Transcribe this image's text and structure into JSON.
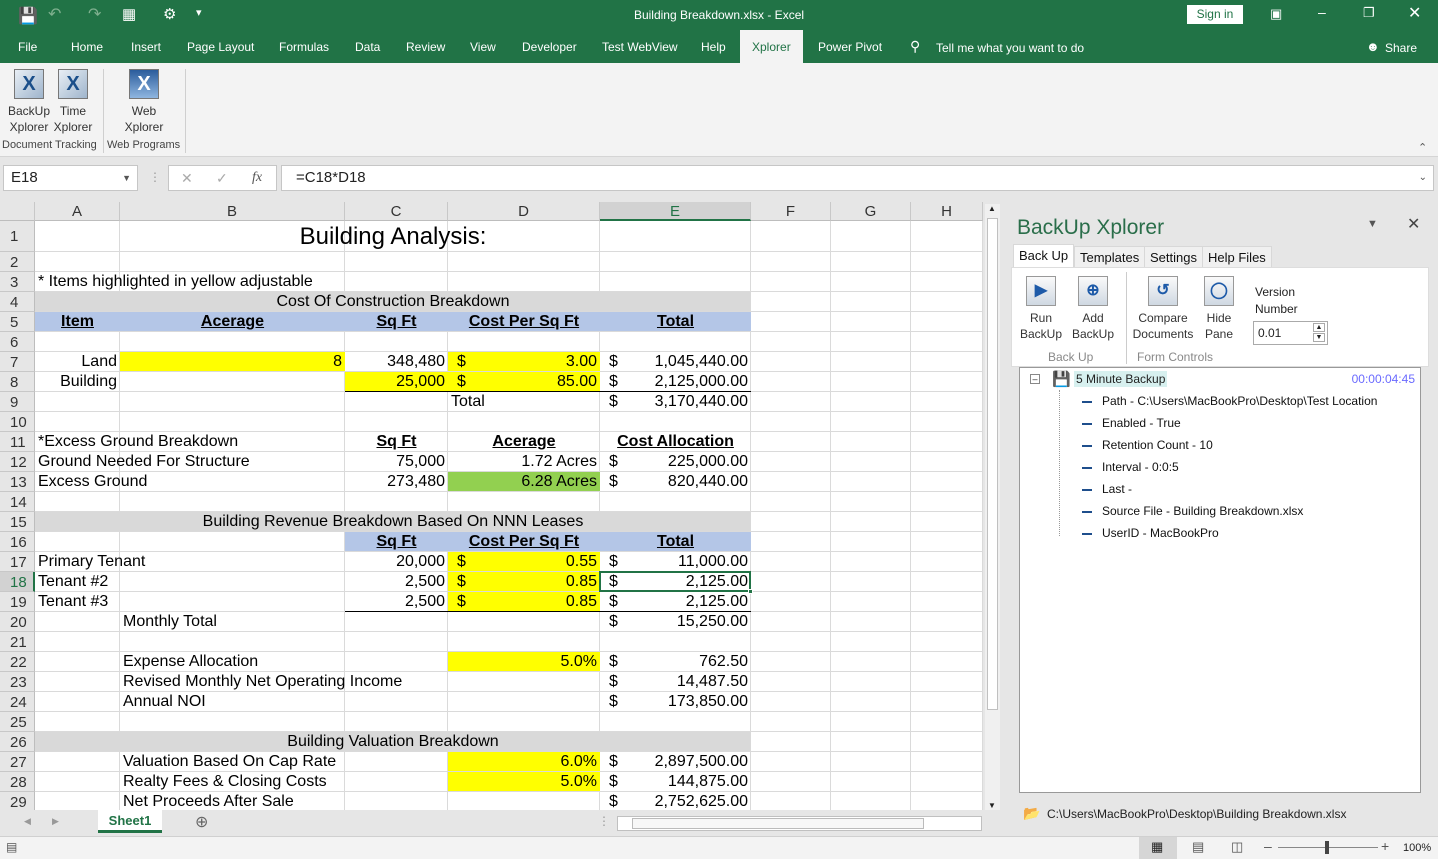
{
  "window": {
    "title": "Building Breakdown.xlsx  -  Excel",
    "sign_in": "Sign in",
    "share": "Share"
  },
  "colors": {
    "excel_green": "#217346",
    "yellow_input": "#ffff00",
    "green_highlight": "#92d050",
    "section_gray": "#d9d9d9",
    "header_blue": "#b4c6e7"
  },
  "menu": {
    "tabs": [
      "File",
      "Home",
      "Insert",
      "Page Layout",
      "Formulas",
      "Data",
      "Review",
      "View",
      "Developer",
      "Test WebView",
      "Help",
      "Xplorer",
      "Power Pivot"
    ],
    "active": "Xplorer",
    "tell_me": "Tell me what you want to do"
  },
  "ribbon": {
    "buttons": [
      {
        "label1": "BackUp",
        "label2": "Xplorer",
        "icon": "backup-xplorer-icon"
      },
      {
        "label1": "Time",
        "label2": "Xplorer",
        "icon": "time-xplorer-icon"
      },
      {
        "label1": "Web",
        "label2": "Xplorer",
        "icon": "web-xplorer-icon"
      }
    ],
    "groups": [
      "Document Tracking",
      "Web Programs"
    ]
  },
  "formula_bar": {
    "name_box": "E18",
    "formula": "=C18*D18",
    "fx": "fx"
  },
  "columns": [
    "A",
    "B",
    "C",
    "D",
    "E",
    "F",
    "G",
    "H"
  ],
  "selected_cell": {
    "col": "E",
    "row": 18
  },
  "rows": [
    {
      "n": 1,
      "cells": [
        {
          "c": "A",
          "span": "E",
          "t": "Building Analysis:",
          "a": "c",
          "title": true
        }
      ]
    },
    {
      "n": 2,
      "cells": []
    },
    {
      "n": 3,
      "cells": [
        {
          "c": "A",
          "t": "* Items highlighted in yellow adjustable"
        }
      ]
    },
    {
      "n": 4,
      "cells": [
        {
          "c": "A",
          "span": "E",
          "t": "Cost Of Construction Breakdown",
          "a": "c",
          "bg": "gray"
        }
      ]
    },
    {
      "n": 5,
      "band": "blue",
      "bandFrom": "A",
      "cells": [
        {
          "c": "A",
          "t": "Item",
          "a": "c",
          "s": "bu"
        },
        {
          "c": "B",
          "t": "Acerage",
          "a": "c",
          "s": "bu"
        },
        {
          "c": "C",
          "t": "Sq Ft",
          "a": "c",
          "s": "bu"
        },
        {
          "c": "D",
          "t": "Cost Per Sq Ft",
          "a": "c",
          "s": "bu"
        },
        {
          "c": "E",
          "t": "Total",
          "a": "c",
          "s": "bu"
        }
      ]
    },
    {
      "n": 6,
      "cells": []
    },
    {
      "n": 7,
      "cells": [
        {
          "c": "A",
          "t": "Land",
          "a": "r"
        },
        {
          "c": "B",
          "t": "8",
          "a": "r",
          "bg": "y"
        },
        {
          "c": "C",
          "t": "348,480",
          "a": "r"
        },
        {
          "c": "D",
          "cur": "$",
          "t": "3.00",
          "a": "r",
          "bg": "y"
        },
        {
          "c": "E",
          "cur": "$",
          "t": "1,045,440.00",
          "a": "r"
        }
      ]
    },
    {
      "n": 8,
      "cells": [
        {
          "c": "A",
          "t": "Building",
          "a": "r"
        },
        {
          "c": "C",
          "t": "25,000",
          "a": "r",
          "bg": "y",
          "bb": true
        },
        {
          "c": "D",
          "cur": "$",
          "t": "85.00",
          "a": "r",
          "bg": "y",
          "bb": true
        },
        {
          "c": "E",
          "cur": "$",
          "t": "2,125,000.00",
          "a": "r",
          "bb": true
        }
      ]
    },
    {
      "n": 9,
      "cells": [
        {
          "c": "D",
          "t": "Total"
        },
        {
          "c": "E",
          "cur": "$",
          "t": "3,170,440.00",
          "a": "r"
        }
      ]
    },
    {
      "n": 10,
      "cells": []
    },
    {
      "n": 11,
      "cells": [
        {
          "c": "A",
          "t": "*Excess Ground Breakdown"
        },
        {
          "c": "C",
          "t": "Sq Ft",
          "a": "c",
          "s": "bu"
        },
        {
          "c": "D",
          "t": "Acerage",
          "a": "c",
          "s": "bu"
        },
        {
          "c": "E",
          "t": "Cost Allocation",
          "a": "c",
          "s": "bu"
        }
      ]
    },
    {
      "n": 12,
      "cells": [
        {
          "c": "A",
          "t": "Ground Needed For Structure"
        },
        {
          "c": "C",
          "t": "75,000",
          "a": "r"
        },
        {
          "c": "D",
          "t": "1.72 Acres",
          "a": "r"
        },
        {
          "c": "E",
          "cur": "$",
          "t": "225,000.00",
          "a": "r"
        }
      ]
    },
    {
      "n": 13,
      "cells": [
        {
          "c": "A",
          "t": "Excess Ground"
        },
        {
          "c": "C",
          "t": "273,480",
          "a": "r"
        },
        {
          "c": "D",
          "t": "6.28 Acres",
          "a": "r",
          "bg": "g"
        },
        {
          "c": "E",
          "cur": "$",
          "t": "820,440.00",
          "a": "r"
        }
      ]
    },
    {
      "n": 14,
      "cells": []
    },
    {
      "n": 15,
      "cells": [
        {
          "c": "A",
          "span": "E",
          "t": "Building Revenue Breakdown Based On NNN Leases",
          "a": "c",
          "bg": "gray"
        }
      ]
    },
    {
      "n": 16,
      "band": "blue",
      "bandFrom": "C",
      "cells": [
        {
          "c": "C",
          "t": "Sq Ft",
          "a": "c",
          "s": "bu"
        },
        {
          "c": "D",
          "t": "Cost Per Sq Ft",
          "a": "c",
          "s": "bu"
        },
        {
          "c": "E",
          "t": "Total",
          "a": "c",
          "s": "bu"
        }
      ]
    },
    {
      "n": 17,
      "cells": [
        {
          "c": "A",
          "t": "Primary Tenant"
        },
        {
          "c": "C",
          "t": "20,000",
          "a": "r"
        },
        {
          "c": "D",
          "cur": "$",
          "t": "0.55",
          "a": "r",
          "bg": "y"
        },
        {
          "c": "E",
          "cur": "$",
          "t": "11,000.00",
          "a": "r"
        }
      ]
    },
    {
      "n": 18,
      "cells": [
        {
          "c": "A",
          "t": "Tenant #2"
        },
        {
          "c": "C",
          "t": "2,500",
          "a": "r"
        },
        {
          "c": "D",
          "cur": "$",
          "t": "0.85",
          "a": "r",
          "bg": "y"
        },
        {
          "c": "E",
          "cur": "$",
          "t": "2,125.00",
          "a": "r"
        }
      ]
    },
    {
      "n": 19,
      "cells": [
        {
          "c": "A",
          "t": "Tenant #3"
        },
        {
          "c": "C",
          "t": "2,500",
          "a": "r",
          "bb": true
        },
        {
          "c": "D",
          "cur": "$",
          "t": "0.85",
          "a": "r",
          "bg": "y",
          "bb": true
        },
        {
          "c": "E",
          "cur": "$",
          "t": "2,125.00",
          "a": "r",
          "bb": true
        }
      ]
    },
    {
      "n": 20,
      "cells": [
        {
          "c": "B",
          "t": "Monthly Total"
        },
        {
          "c": "E",
          "cur": "$",
          "t": "15,250.00",
          "a": "r"
        }
      ]
    },
    {
      "n": 21,
      "cells": []
    },
    {
      "n": 22,
      "cells": [
        {
          "c": "B",
          "t": "Expense Allocation"
        },
        {
          "c": "D",
          "t": "5.0%",
          "a": "r",
          "bg": "y"
        },
        {
          "c": "E",
          "cur": "$",
          "t": "762.50",
          "a": "r"
        }
      ]
    },
    {
      "n": 23,
      "cells": [
        {
          "c": "B",
          "t": "Revised Monthly Net Operating Income"
        },
        {
          "c": "E",
          "cur": "$",
          "t": "14,487.50",
          "a": "r"
        }
      ]
    },
    {
      "n": 24,
      "cells": [
        {
          "c": "B",
          "t": "Annual NOI"
        },
        {
          "c": "E",
          "cur": "$",
          "t": "173,850.00",
          "a": "r"
        }
      ]
    },
    {
      "n": 25,
      "cells": []
    },
    {
      "n": 26,
      "cells": [
        {
          "c": "A",
          "span": "E",
          "t": "Building Valuation Breakdown",
          "a": "c",
          "bg": "gray"
        }
      ]
    },
    {
      "n": 27,
      "cells": [
        {
          "c": "B",
          "t": "Valuation Based On Cap Rate"
        },
        {
          "c": "D",
          "t": "6.0%",
          "a": "r",
          "bg": "y"
        },
        {
          "c": "E",
          "cur": "$",
          "t": "2,897,500.00",
          "a": "r"
        }
      ]
    },
    {
      "n": 28,
      "cells": [
        {
          "c": "B",
          "t": "Realty Fees & Closing Costs"
        },
        {
          "c": "D",
          "t": "5.0%",
          "a": "r",
          "bg": "y"
        },
        {
          "c": "E",
          "cur": "$",
          "t": "144,875.00",
          "a": "r"
        }
      ]
    },
    {
      "n": 29,
      "cells": [
        {
          "c": "B",
          "t": "Net Proceeds After Sale"
        },
        {
          "c": "E",
          "cur": "$",
          "t": "2,752,625.00",
          "a": "r"
        }
      ]
    }
  ],
  "sheet_tabs": [
    "Sheet1"
  ],
  "status": {
    "zoom": "100%"
  },
  "pane": {
    "title": "BackUp Xplorer",
    "tabs": [
      "Back Up",
      "Templates",
      "Settings",
      "Help Files"
    ],
    "buttons": [
      {
        "l1": "Run",
        "l2": "BackUp",
        "icon": "play-icon"
      },
      {
        "l1": "Add",
        "l2": "BackUp",
        "icon": "add-backup-icon"
      },
      {
        "l1": "Compare",
        "l2": "Documents",
        "icon": "compare-documents-icon"
      },
      {
        "l1": "Hide",
        "l2": "Pane",
        "icon": "hide-pane-icon"
      }
    ],
    "groups": [
      "Back Up",
      "Form Controls"
    ],
    "version_label1": "Version",
    "version_label2": "Number",
    "version_value": "0.01",
    "tree": {
      "root": "5 Minute Backup",
      "time": "00:00:04:45",
      "children": [
        "Path - C:\\Users\\MacBookPro\\Desktop\\Test Location",
        "Enabled - True",
        "Retention Count - 10",
        "Interval - 0:0:5",
        "Last -",
        "Source File - Building Breakdown.xlsx",
        "UserID - MacBookPro"
      ]
    },
    "footer_path": "C:\\Users\\MacBookPro\\Desktop\\Building Breakdown.xlsx"
  }
}
